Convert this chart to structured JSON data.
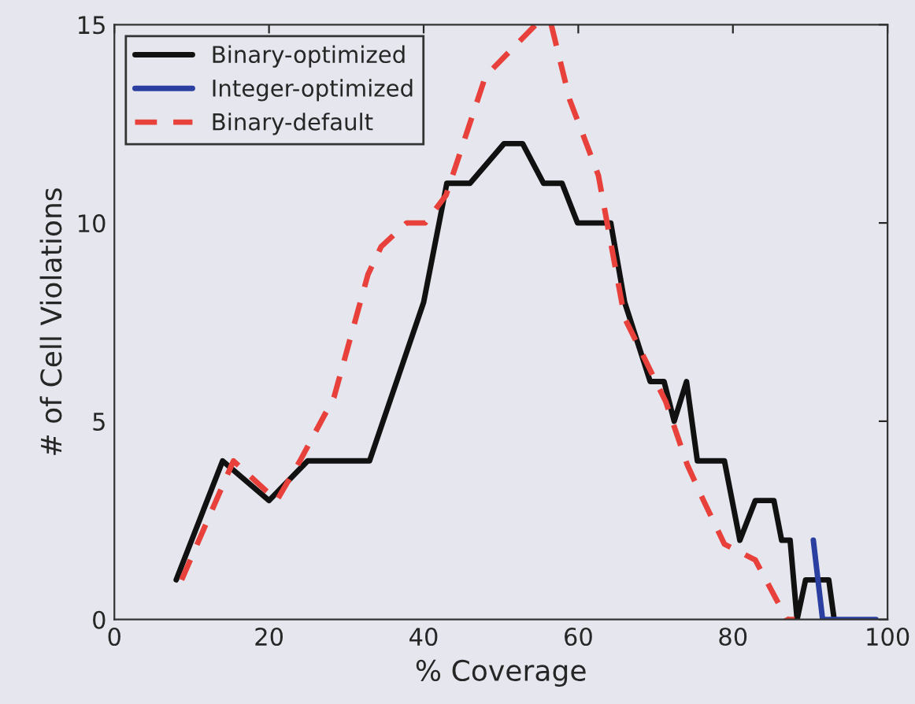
{
  "chart_data": {
    "type": "line",
    "xlabel": "% Coverage",
    "ylabel": "# of Cell Violations",
    "xlim": [
      0,
      100
    ],
    "xticks": [
      0,
      20,
      40,
      60,
      80,
      100
    ],
    "ylim": [
      0,
      15
    ],
    "yticks": [
      0,
      5,
      10,
      15
    ],
    "grid": false,
    "legend": "top left",
    "series": [
      {
        "name": "Binary-optimized",
        "color": "#111111",
        "line_style": "solid",
        "x": [
          8,
          14,
          20,
          25,
          33,
          40,
          43,
          46,
          50.4,
          52.8,
          55.5,
          57.9,
          59.9,
          64.2,
          66,
          69.3,
          71.1,
          72.4,
          74,
          75.4,
          78.9,
          80.9,
          82.9,
          85.3,
          86.3,
          87.4,
          88.3,
          89.4,
          92.4,
          93.1
        ],
        "values": [
          1,
          4,
          3,
          4,
          4,
          8,
          11,
          11,
          12,
          12,
          11,
          11,
          10,
          10,
          8,
          6,
          6,
          5,
          6,
          4,
          4,
          2,
          3,
          3,
          2,
          2,
          0,
          1,
          1,
          0
        ]
      },
      {
        "name": "Integer-optimized",
        "color": "#2a3fa0",
        "line_style": "solid",
        "x": [
          90.4,
          91.6,
          98.5
        ],
        "values": [
          2,
          0,
          0
        ]
      },
      {
        "name": "Binary-default",
        "color": "#e8403a",
        "line_style": "dashed",
        "x": [
          8.7,
          15.4,
          21,
          24,
          28.4,
          32.8,
          34.5,
          37.8,
          40.2,
          42.9,
          48,
          54.5,
          56.5,
          58.9,
          62.6,
          66,
          71.3,
          74.1,
          76.2,
          78.9,
          82.9,
          87,
          88
        ],
        "values": [
          1,
          4,
          3,
          4,
          5.6,
          8.7,
          9.4,
          10,
          10,
          10.7,
          13.7,
          15,
          15,
          13.1,
          11.2,
          7.6,
          5.5,
          3.9,
          3,
          1.9,
          1.5,
          0,
          0
        ]
      }
    ]
  }
}
